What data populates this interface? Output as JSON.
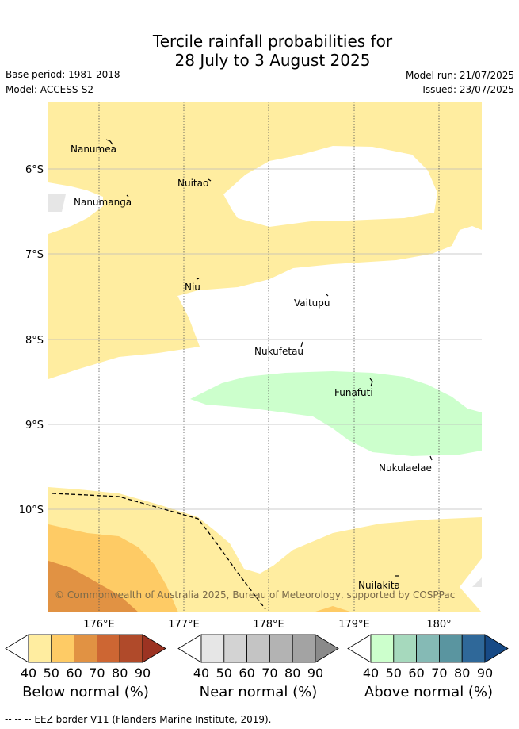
{
  "title": {
    "line1": "Tercile rainfall probabilities for",
    "line2": "28 July to 3 August 2025"
  },
  "meta": {
    "base_period": "Base period: 1981-2018",
    "model": "Model: ACCESS-S2",
    "model_run": "Model run: 21/07/2025",
    "issued": "Issued: 23/07/2025"
  },
  "map": {
    "latitude_labels": [
      "6°S",
      "7°S",
      "8°S",
      "9°S",
      "10°S"
    ],
    "longitude_labels": [
      "176°E",
      "177°E",
      "178°E",
      "179°E",
      "180°"
    ],
    "places": [
      "Nanumea",
      "Nuitao",
      "Nanumanga",
      "Niu",
      "Vaitupu",
      "Nukufetau",
      "Funafuti",
      "Nukulaelae",
      "Nuilakita"
    ],
    "copyright": "© Commonwealth of Australia 2025, Bureau of Meteorology, supported by COSPPac",
    "colors": {
      "below_40": "#ffeda0",
      "near_40": "#e6e6e6",
      "above_40": "#ccffcc",
      "eez_border": "#000000"
    }
  },
  "legends": {
    "below": {
      "label": "Below normal (%)",
      "ticks": [
        "40",
        "50",
        "60",
        "70",
        "80",
        "90"
      ],
      "colors": [
        "#ffeda0",
        "#fecb65",
        "#e19243",
        "#cd6633",
        "#b04a2a",
        "#9c3322"
      ]
    },
    "near": {
      "label": "Near normal (%)",
      "ticks": [
        "40",
        "50",
        "60",
        "70",
        "80",
        "90"
      ],
      "colors": [
        "#e6e6e6",
        "#d3d3d3",
        "#c4c4c4",
        "#b3b3b3",
        "#a3a3a3",
        "#8a8a8a"
      ]
    },
    "above": {
      "label": "Above normal (%)",
      "ticks": [
        "40",
        "50",
        "60",
        "70",
        "80",
        "90"
      ],
      "colors": [
        "#ccffcc",
        "#a6d9bd",
        "#85bab5",
        "#5a95a0",
        "#2f6899",
        "#174a86"
      ]
    }
  },
  "footer": "--  --  -- EEZ border V11 (Flanders Marine Institute, 2019)."
}
